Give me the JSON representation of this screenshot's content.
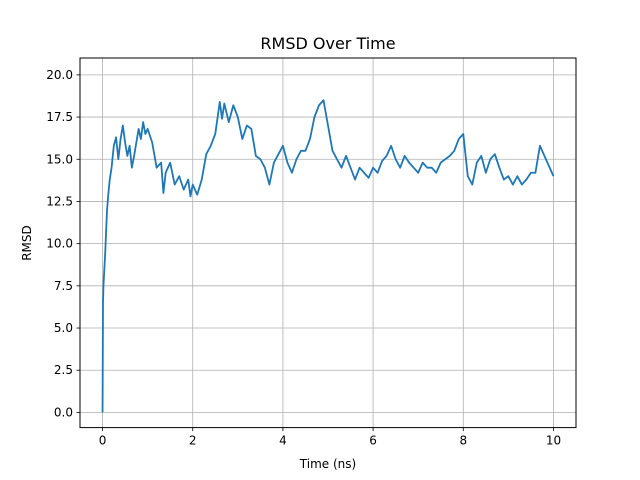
{
  "chart_data": {
    "type": "line",
    "title": "RMSD Over Time",
    "xlabel": "Time (ns)",
    "ylabel": "RMSD",
    "xlim": [
      -0.5,
      10.5
    ],
    "ylim": [
      -0.9,
      21.0
    ],
    "xticks": [
      0,
      2,
      4,
      6,
      8,
      10
    ],
    "xtick_labels": [
      "0",
      "2",
      "4",
      "6",
      "8",
      "10"
    ],
    "yticks": [
      0.0,
      2.5,
      5.0,
      7.5,
      10.0,
      12.5,
      15.0,
      17.5,
      20.0
    ],
    "ytick_labels": [
      "0.0",
      "2.5",
      "5.0",
      "7.5",
      "10.0",
      "12.5",
      "15.0",
      "17.5",
      "20.0"
    ],
    "grid": true,
    "line_color": "#1f77b4",
    "series": [
      {
        "x": [
          0,
          0.01,
          0.02,
          0.04,
          0.06,
          0.08,
          0.1,
          0.13,
          0.16,
          0.2,
          0.25,
          0.3,
          0.35,
          0.4,
          0.45,
          0.5,
          0.55,
          0.6,
          0.65,
          0.7,
          0.75,
          0.8,
          0.85,
          0.9,
          0.95,
          1.0,
          1.1,
          1.2,
          1.3,
          1.35,
          1.4,
          1.5,
          1.6,
          1.7,
          1.8,
          1.9,
          1.95,
          2.0,
          2.1,
          2.2,
          2.3,
          2.4,
          2.5,
          2.6,
          2.65,
          2.7,
          2.8,
          2.9,
          3.0,
          3.1,
          3.2,
          3.3,
          3.4,
          3.5,
          3.6,
          3.7,
          3.8,
          3.9,
          4.0,
          4.1,
          4.2,
          4.3,
          4.4,
          4.5,
          4.6,
          4.7,
          4.8,
          4.9,
          5.0,
          5.1,
          5.2,
          5.3,
          5.4,
          5.5,
          5.6,
          5.7,
          5.8,
          5.9,
          6.0,
          6.1,
          6.2,
          6.3,
          6.4,
          6.5,
          6.6,
          6.7,
          6.8,
          6.9,
          7.0,
          7.1,
          7.2,
          7.3,
          7.4,
          7.5,
          7.6,
          7.7,
          7.8,
          7.9,
          8.0,
          8.1,
          8.2,
          8.3,
          8.4,
          8.5,
          8.6,
          8.7,
          8.8,
          8.9,
          9.0,
          9.1,
          9.2,
          9.3,
          9.4,
          9.5,
          9.6,
          9.7,
          9.8,
          9.9,
          10.0
        ],
        "y": [
          0.0,
          6.5,
          7.5,
          8.5,
          9.5,
          10.8,
          12.0,
          13.0,
          13.8,
          14.5,
          15.8,
          16.3,
          15.0,
          16.2,
          17.0,
          16.0,
          15.2,
          15.8,
          14.5,
          15.2,
          16.0,
          16.8,
          16.2,
          17.2,
          16.5,
          16.8,
          16.0,
          14.5,
          14.8,
          13.0,
          14.2,
          14.8,
          13.5,
          14.0,
          13.2,
          13.8,
          12.8,
          13.5,
          12.9,
          13.8,
          15.3,
          15.8,
          16.5,
          18.4,
          17.4,
          18.3,
          17.2,
          18.2,
          17.5,
          16.2,
          17.0,
          16.8,
          15.2,
          15.0,
          14.5,
          13.5,
          14.8,
          15.3,
          15.8,
          14.8,
          14.2,
          15.0,
          15.5,
          15.5,
          16.2,
          17.5,
          18.2,
          18.5,
          17.0,
          15.5,
          15.0,
          14.5,
          15.2,
          14.5,
          13.8,
          14.5,
          14.2,
          13.9,
          14.5,
          14.2,
          14.9,
          15.2,
          15.8,
          15.0,
          14.5,
          15.2,
          14.8,
          14.5,
          14.2,
          14.8,
          14.5,
          14.5,
          14.2,
          14.8,
          15.0,
          15.2,
          15.5,
          16.2,
          16.5,
          14.0,
          13.5,
          14.8,
          15.2,
          14.2,
          15.0,
          15.3,
          14.5,
          13.8,
          14.0,
          13.5,
          14.0,
          13.5,
          13.8,
          14.2,
          14.2,
          15.8,
          15.2,
          14.6,
          14.0
        ]
      }
    ]
  }
}
